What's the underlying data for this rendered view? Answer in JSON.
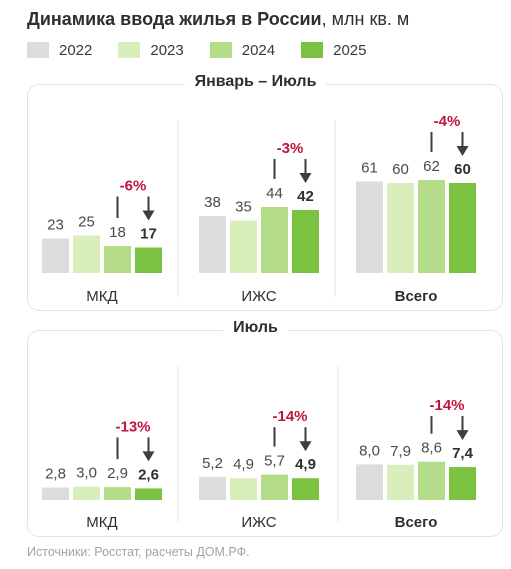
{
  "title_bold": "Динамика ввода жилья в России",
  "title_rest": ", млн кв. м",
  "source": "Источники: Росстат, расчеты ДОМ.РФ.",
  "colors": {
    "2022": "#dcdcdc",
    "2023": "#d8efbc",
    "2024": "#b4dc88",
    "2025": "#7cc242",
    "change": "#c0143c",
    "arrow": "#3a3f46"
  },
  "chart_data": [
    {
      "type": "bar",
      "title": "Январь – Июль",
      "categories": [
        "МКД",
        "ИЖС",
        "Всего"
      ],
      "legend": [
        "2022",
        "2023",
        "2024",
        "2025"
      ],
      "series": [
        {
          "name": "2022",
          "values": [
            23,
            38,
            61
          ],
          "labels": [
            "23",
            "38",
            "61"
          ]
        },
        {
          "name": "2023",
          "values": [
            25,
            35,
            60
          ],
          "labels": [
            "25",
            "35",
            "60"
          ]
        },
        {
          "name": "2024",
          "values": [
            18,
            44,
            62
          ],
          "labels": [
            "18",
            "44",
            "62"
          ]
        },
        {
          "name": "2025",
          "values": [
            17,
            42,
            60
          ],
          "labels": [
            "17",
            "42",
            "60"
          ]
        }
      ],
      "changes": [
        "-6%",
        "-3%",
        "-4%"
      ]
    },
    {
      "type": "bar",
      "title": "Июль",
      "categories": [
        "МКД",
        "ИЖС",
        "Всего"
      ],
      "legend": [
        "2022",
        "2023",
        "2024",
        "2025"
      ],
      "series": [
        {
          "name": "2022",
          "values": [
            2.8,
            5.2,
            8.0
          ],
          "labels": [
            "2,8",
            "5,2",
            "8,0"
          ]
        },
        {
          "name": "2023",
          "values": [
            3.0,
            4.9,
            7.9
          ],
          "labels": [
            "3,0",
            "4,9",
            "7,9"
          ]
        },
        {
          "name": "2024",
          "values": [
            2.9,
            5.7,
            8.6
          ],
          "labels": [
            "2,9",
            "5,7",
            "8,6"
          ]
        },
        {
          "name": "2025",
          "values": [
            2.6,
            4.9,
            7.4
          ],
          "labels": [
            "2,6",
            "4,9",
            "7,4"
          ]
        }
      ],
      "changes": [
        "-13%",
        "-14%",
        "-14%"
      ]
    }
  ]
}
